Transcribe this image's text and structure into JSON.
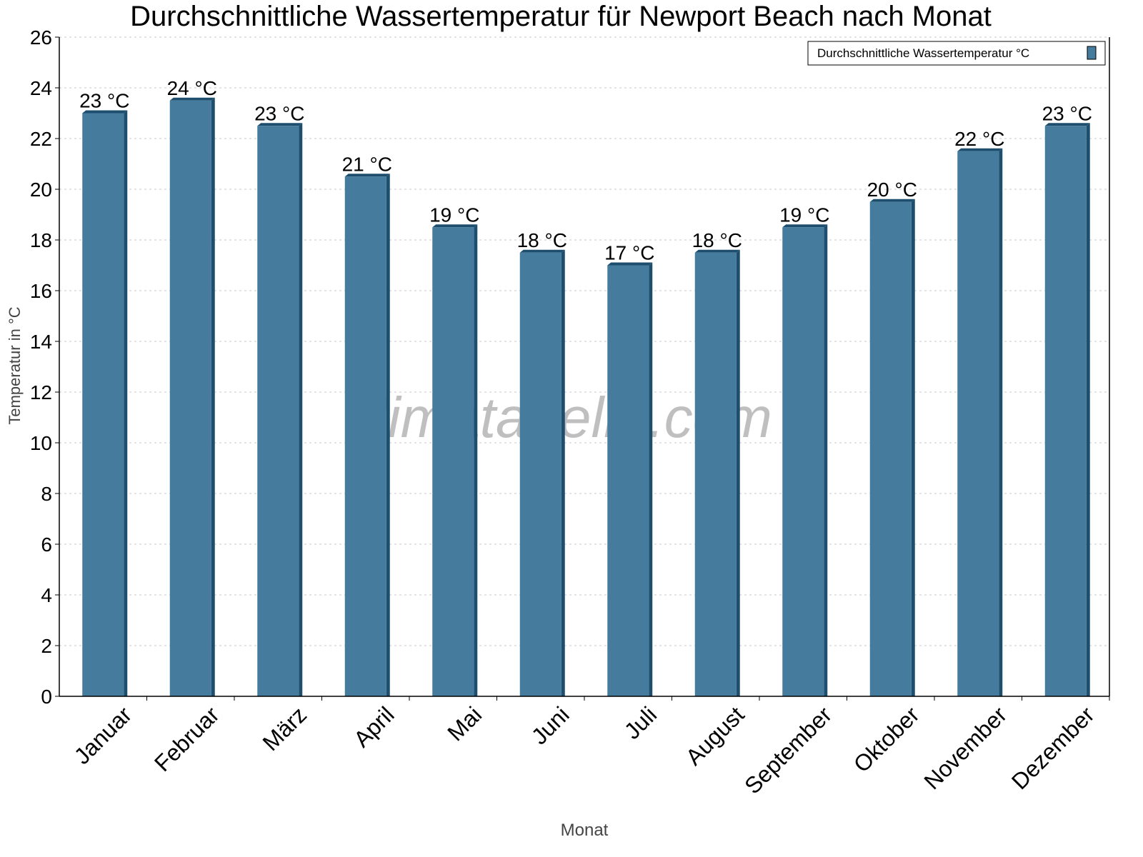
{
  "chart_data": {
    "type": "bar",
    "title": "Durchschnittliche Wassertemperatur für Newport Beach nach Monat",
    "xlabel": "Monat",
    "ylabel": "Temperatur in °C",
    "ylim": [
      0,
      26
    ],
    "yticks": [
      0,
      2,
      4,
      6,
      8,
      10,
      12,
      14,
      16,
      18,
      20,
      22,
      24,
      26
    ],
    "grid": true,
    "legend_position": "top-right",
    "categories": [
      "Januar",
      "Februar",
      "März",
      "April",
      "Mai",
      "Juni",
      "Juli",
      "August",
      "September",
      "Oktober",
      "November",
      "Dezember"
    ],
    "series": [
      {
        "name": "Durchschnittliche Wassertemperatur °C",
        "values": [
          23.0,
          23.5,
          22.5,
          20.5,
          18.5,
          17.5,
          17.0,
          17.5,
          18.5,
          19.5,
          21.5,
          22.5
        ],
        "labels": [
          "23 °C",
          "24 °C",
          "23 °C",
          "21 °C",
          "19 °C",
          "18 °C",
          "17 °C",
          "18 °C",
          "19 °C",
          "20 °C",
          "22 °C",
          "23 °C"
        ],
        "color": "#457b9d",
        "edge_color": "#1d4e6e"
      }
    ],
    "watermark": "klimatabelle.com"
  }
}
